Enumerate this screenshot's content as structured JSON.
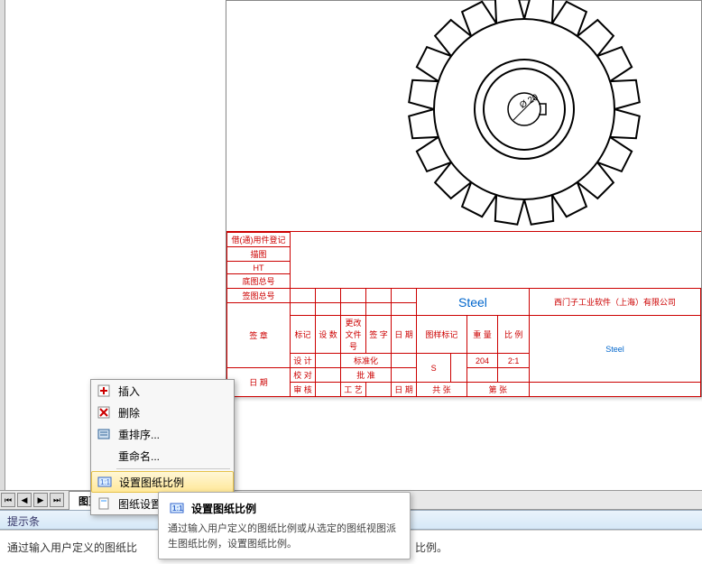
{
  "drawing": {
    "gear": {
      "teeth": 20,
      "outer_radius": 128,
      "inner_radius": 100,
      "bore_radius": 45,
      "bore_inner_radius": 18,
      "stroke": "#000000",
      "stroke_width": 2,
      "dim_label": "Ø 20"
    }
  },
  "title_block": {
    "left_labels": [
      "借(通)用件登记",
      "描图",
      "HT",
      "底图总号",
      "签图总号",
      "签 章",
      "日 期"
    ],
    "steel": "Steel",
    "company": "西门子工业软件（上海）有限公司",
    "row_labels": {
      "mark": "标记",
      "prod": "设 数",
      "chg": "更改文件号",
      "sign": "签 字",
      "date2": "日 期",
      "design": "设 计",
      "std": "标准化",
      "drwmark": "图样标记",
      "weight": "重 量",
      "scale": "比 例",
      "check": "校 对",
      "approve": "批 准",
      "s": "S",
      "rev": "2:1",
      "num": "204",
      "audit": "审 核",
      "gong": "工 艺",
      "riqi": "日 期",
      "gong2": "共 张",
      "di": "第 张",
      "steel_col": "Steel"
    }
  },
  "context_menu": {
    "items": [
      {
        "label": "插入",
        "icon": "insert"
      },
      {
        "label": "删除",
        "icon": "delete"
      },
      {
        "label": "重排序...",
        "icon": "reorder"
      },
      {
        "label": "重命名...",
        "icon": ""
      }
    ],
    "highlighted": {
      "label": "设置图纸比例",
      "icon": "scale"
    },
    "after": {
      "label": "图纸设置",
      "icon": "sheet"
    }
  },
  "tabs": {
    "active": "图页1"
  },
  "hintbar": {
    "label": "提示条"
  },
  "statusbar": {
    "text": "通过输入用户定义的图纸比",
    "suffix": "比例。"
  },
  "tooltip": {
    "title": "设置图纸比例",
    "body": "通过输入用户定义的图纸比例或从选定的图纸视图派生图纸比例，设置图纸比例。"
  },
  "colors": {
    "title_border": "#c00",
    "menu_highlight": "#ffe899"
  }
}
